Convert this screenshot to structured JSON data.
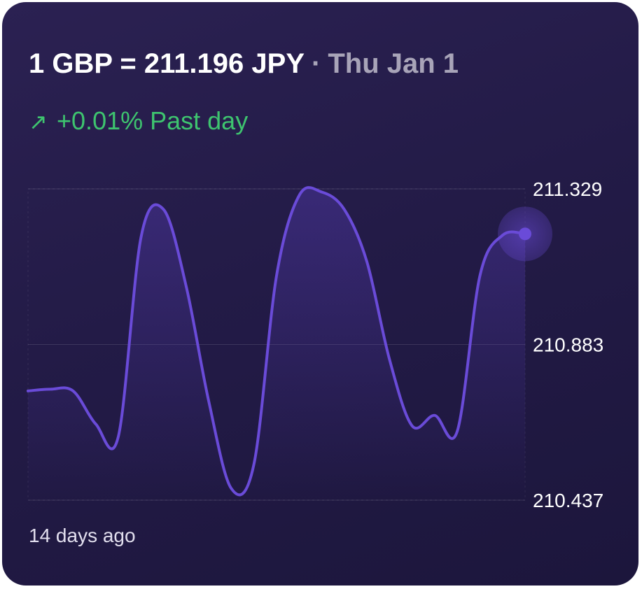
{
  "header": {
    "rate_text": "1 GBP = 211.196 JPY",
    "separator": "·",
    "date": "Thu Jan 1"
  },
  "change": {
    "arrow": "↗",
    "text": "+0.01% Past day",
    "color": "#3ec46f"
  },
  "footer": {
    "start_label": "14 days ago"
  },
  "chart_data": {
    "type": "line",
    "y_ticks": [
      "211.329",
      "210.883",
      "210.437"
    ],
    "ylim": [
      210.437,
      211.329
    ],
    "grid": true,
    "series": [
      {
        "color": "#6a4bd8",
        "values": [
          210.75,
          210.755,
          210.75,
          210.655,
          210.62,
          211.19,
          211.27,
          211.05,
          210.72,
          210.47,
          210.54,
          211.08,
          211.31,
          211.32,
          211.27,
          211.12,
          210.84,
          210.65,
          210.68,
          210.635,
          211.08,
          211.196,
          211.2
        ]
      }
    ]
  }
}
